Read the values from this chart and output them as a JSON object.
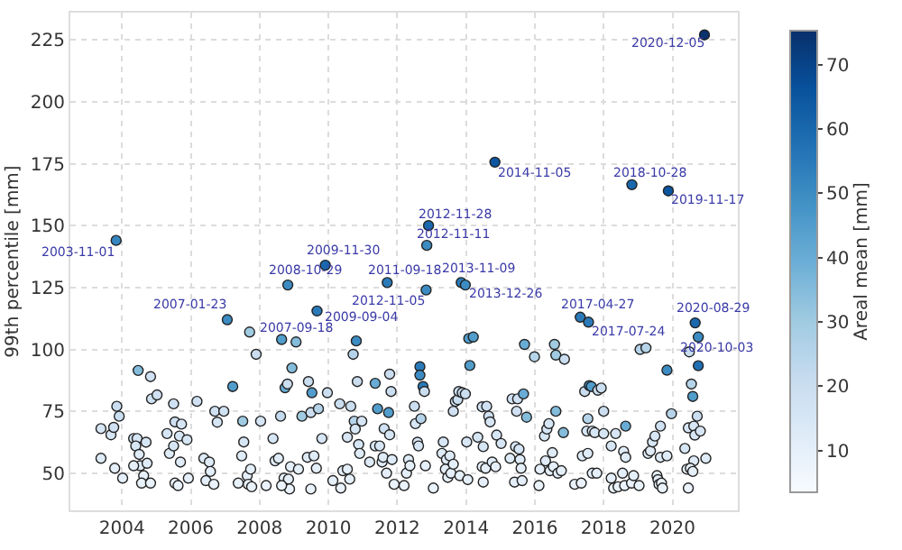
{
  "chart_data": {
    "type": "scatter",
    "ylabel": "99th percentile [mm]",
    "clabel": "Areal mean [mm]",
    "xlim": [
      2002.5,
      2021.9
    ],
    "xticks": [
      2004,
      2006,
      2008,
      2010,
      2012,
      2014,
      2016,
      2018,
      2020
    ],
    "ylim": [
      35,
      236
    ],
    "yticks": [
      50,
      75,
      100,
      125,
      150,
      175,
      200,
      225
    ],
    "clim": [
      3.5,
      75.3
    ],
    "cticks": [
      10,
      20,
      30,
      40,
      50,
      60,
      70
    ],
    "grid": true,
    "legend": false,
    "marker": "circle",
    "x": [
      2003.39,
      2003.39,
      2003.68,
      2003.76,
      2003.85,
      2003.92,
      2003.79,
      2004.02,
      2004.47,
      2004.34,
      2004.44,
      2004.4,
      2004.5,
      2004.53,
      2004.63,
      2004.7,
      2004.73,
      2004.57,
      2004.34,
      2004.83,
      2004.83,
      2004.86,
      2005.02,
      2005.31,
      2005.38,
      2005.5,
      2005.5,
      2005.54,
      2005.67,
      2005.73,
      2005.89,
      2005.7,
      2005.54,
      2005.63,
      2005.93,
      2006.18,
      2006.38,
      2006.54,
      2006.44,
      2006.57,
      2006.67,
      2006.7,
      2006.77,
      2006.96,
      2007.22,
      2007.38,
      2007.48,
      2007.51,
      2007.54,
      2007.64,
      2007.67,
      2007.77,
      2007.74,
      2007.9,
      2008.03,
      2008.19,
      2008.39,
      2008.45,
      2008.55,
      2008.61,
      2008.64,
      2008.74,
      2008.81,
      2008.94,
      2008.71,
      2008.84,
      2008.87,
      2008.64,
      2008.9,
      2009.06,
      2009.13,
      2009.23,
      2009.39,
      2009.42,
      2009.52,
      2009.49,
      2009.58,
      2009.65,
      2009.71,
      2009.81,
      2009.49,
      2009.97,
      2010.13,
      2010.36,
      2010.42,
      2010.55,
      2010.33,
      2010.55,
      2010.62,
      2010.65,
      2010.72,
      2010.75,
      2010.78,
      2010.81,
      2010.84,
      2010.88,
      2010.97,
      2010.91,
      2011.2,
      2011.36,
      2011.43,
      2011.36,
      2011.49,
      2011.56,
      2011.59,
      2011.62,
      2011.69,
      2011.78,
      2011.78,
      2011.82,
      2011.75,
      2011.85,
      2011.91,
      2012.2,
      2012.27,
      2012.33,
      2012.37,
      2012.5,
      2012.53,
      2012.59,
      2012.62,
      2012.66,
      2012.66,
      2012.75,
      2012.79,
      2012.69,
      2012.82,
      2013.05,
      2013.34,
      2013.3,
      2013.43,
      2013.4,
      2013.47,
      2013.56,
      2013.53,
      2013.63,
      2013.69,
      2013.63,
      2013.76,
      2013.82,
      2013.79,
      2013.89,
      2013.98,
      2014.02,
      2014.05,
      2014.08,
      2014.21,
      2014.11,
      2014.34,
      2014.47,
      2014.47,
      2014.5,
      2014.5,
      2014.57,
      2014.6,
      2014.66,
      2014.7,
      2014.76,
      2014.86,
      2014.89,
      2015.02,
      2015.28,
      2015.34,
      2015.41,
      2015.44,
      2015.5,
      2015.47,
      2015.54,
      2015.57,
      2015.6,
      2015.67,
      2015.7,
      2015.76,
      2015.63,
      2015.99,
      2016.12,
      2016.15,
      2016.28,
      2016.31,
      2016.35,
      2016.41,
      2016.44,
      2016.51,
      2016.54,
      2016.57,
      2016.61,
      2016.61,
      2016.67,
      2016.77,
      2016.83,
      2016.86,
      2017.16,
      2017.35,
      2017.38,
      2017.45,
      2017.54,
      2017.51,
      2017.54,
      2017.58,
      2017.64,
      2017.67,
      2017.67,
      2017.74,
      2017.8,
      2017.83,
      2017.93,
      2018.0,
      2018.0,
      2018.22,
      2018.22,
      2018.29,
      2018.35,
      2018.42,
      2018.55,
      2018.61,
      2018.58,
      2018.64,
      2018.64,
      2018.81,
      2018.87,
      2019.03,
      2019.06,
      2019.23,
      2019.29,
      2019.36,
      2019.42,
      2019.49,
      2019.55,
      2019.58,
      2019.61,
      2019.65,
      2019.68,
      2019.71,
      2019.65,
      2019.84,
      2019.84,
      2019.97,
      2020.36,
      2020.46,
      2020.46,
      2020.49,
      2020.55,
      2020.59,
      2020.62,
      2020.65,
      2020.62,
      2020.72,
      2020.81,
      2020.75,
      2020.97,
      2020.42,
      2020.52,
      2020.59,
      2003.83,
      2007.06,
      2007.71,
      2008.82,
      2009.67,
      2009.91,
      2011.71,
      2012.84,
      2012.86,
      2012.91,
      2013.86,
      2013.98,
      2014.84,
      2017.32,
      2017.56,
      2018.82,
      2019.88,
      2020.66,
      2020.75,
      2020.93
    ],
    "values": [
      68,
      56,
      65.5,
      68.5,
      77,
      73,
      52,
      48,
      91.5,
      64,
      64,
      61,
      57.6,
      53,
      49,
      62.5,
      54,
      46,
      53,
      46,
      89,
      80,
      81.6,
      66,
      58,
      61,
      78,
      70.7,
      65,
      69.8,
      63.5,
      54.5,
      46,
      45,
      48,
      79,
      56,
      54.5,
      47,
      50.7,
      45.5,
      75,
      70.6,
      75,
      85,
      46,
      57,
      71,
      62.6,
      49,
      45.5,
      44.5,
      51.6,
      98,
      71,
      45,
      64,
      55,
      56,
      73,
      104,
      84.5,
      86,
      92.5,
      48,
      47.6,
      43.6,
      45,
      52.6,
      103,
      51.6,
      73,
      56.4,
      87,
      82.5,
      74.5,
      57,
      52,
      76,
      64,
      43.6,
      82.5,
      47,
      44,
      51,
      51.6,
      78,
      64.5,
      47.6,
      77,
      98,
      71,
      67.8,
      103.4,
      87,
      61.6,
      71,
      58,
      54.5,
      86.3,
      76,
      61,
      61,
      54.5,
      56.4,
      68,
      50,
      65.5,
      90,
      83,
      74.5,
      55.5,
      45.5,
      45,
      50,
      55.5,
      53,
      77,
      70,
      62.5,
      61,
      93,
      89.6,
      85,
      83,
      72,
      53,
      44,
      62.6,
      58,
      55.5,
      51.6,
      48.3,
      50,
      57,
      53.6,
      79,
      75,
      79.7,
      49,
      83,
      82.5,
      82,
      62.6,
      47.4,
      104.4,
      105,
      93.5,
      64.5,
      76.8,
      52.6,
      60.7,
      46.4,
      52,
      77,
      73,
      70.7,
      54.5,
      52.6,
      65.4,
      62,
      56,
      80,
      46.4,
      60.7,
      80,
      75,
      59.7,
      55.5,
      52,
      82,
      102,
      72.6,
      47,
      97,
      45,
      51.6,
      65,
      55,
      67.8,
      70,
      51,
      58.3,
      52.6,
      102,
      97.7,
      75,
      50,
      51,
      66.4,
      96,
      45.5,
      46,
      57,
      83,
      72,
      67,
      58,
      85.4,
      85,
      67,
      50,
      66.4,
      50,
      83.5,
      84.4,
      75,
      66,
      61,
      48,
      44,
      66,
      44.5,
      50,
      45,
      58.8,
      69,
      56.4,
      46,
      49,
      45,
      100,
      100.6,
      58,
      59,
      62.6,
      65,
      49,
      47.4,
      45.5,
      56.4,
      46,
      44,
      69,
      57,
      91.6,
      74,
      60,
      44,
      68.3,
      99,
      86,
      81,
      69,
      65.4,
      55,
      73,
      67,
      105,
      56,
      51.6,
      52,
      50.7,
      144,
      112,
      107,
      126,
      115.5,
      134,
      127,
      124,
      142,
      150,
      127,
      126,
      175.6,
      113,
      111,
      166.5,
      164,
      110.7,
      93.4,
      227
    ],
    "cvalues": [
      15,
      12,
      15,
      18,
      20,
      20,
      10,
      10,
      35,
      18,
      15,
      15,
      12,
      12,
      10,
      15,
      12,
      8,
      10,
      8,
      18,
      18,
      18,
      15,
      12,
      15,
      18,
      18,
      15,
      15,
      15,
      12,
      8,
      8,
      10,
      18,
      12,
      12,
      10,
      10,
      8,
      18,
      15,
      18,
      45,
      8,
      12,
      30,
      15,
      10,
      8,
      8,
      10,
      20,
      15,
      8,
      15,
      12,
      12,
      22,
      45,
      40,
      20,
      35,
      10,
      10,
      8,
      8,
      10,
      35,
      10,
      30,
      12,
      20,
      45,
      20,
      12,
      10,
      25,
      15,
      8,
      20,
      10,
      8,
      10,
      10,
      20,
      15,
      10,
      20,
      25,
      25,
      15,
      50,
      20,
      15,
      15,
      12,
      12,
      40,
      45,
      15,
      15,
      12,
      12,
      18,
      10,
      15,
      20,
      20,
      45,
      12,
      8,
      8,
      10,
      12,
      10,
      20,
      15,
      15,
      15,
      55,
      50,
      55,
      20,
      25,
      10,
      8,
      15,
      12,
      12,
      10,
      10,
      10,
      12,
      10,
      20,
      18,
      20,
      10,
      20,
      20,
      20,
      15,
      10,
      45,
      45,
      45,
      15,
      18,
      10,
      15,
      10,
      10,
      18,
      18,
      15,
      12,
      10,
      15,
      15,
      12,
      18,
      10,
      15,
      18,
      18,
      15,
      12,
      10,
      40,
      40,
      35,
      10,
      25,
      8,
      10,
      15,
      12,
      15,
      15,
      10,
      12,
      10,
      30,
      30,
      35,
      10,
      10,
      35,
      20,
      8,
      8,
      12,
      20,
      25,
      15,
      12,
      50,
      45,
      15,
      10,
      15,
      10,
      20,
      20,
      20,
      15,
      15,
      10,
      8,
      15,
      8,
      10,
      8,
      12,
      40,
      12,
      8,
      10,
      8,
      25,
      25,
      12,
      12,
      15,
      15,
      10,
      10,
      8,
      12,
      8,
      8,
      18,
      12,
      50,
      25,
      15,
      8,
      15,
      20,
      25,
      45,
      15,
      15,
      12,
      20,
      15,
      50,
      12,
      10,
      10,
      10,
      52,
      50,
      30,
      50,
      55,
      60,
      55,
      50,
      50,
      60,
      55,
      50,
      65,
      55,
      55,
      60,
      65,
      60,
      58,
      75
    ],
    "annotations": [
      {
        "text": "2003-11-01",
        "x": 2003.83,
        "y": 144
      },
      {
        "text": "2007-01-23",
        "x": 2007.06,
        "y": 112
      },
      {
        "text": "2007-09-18",
        "x": 2007.71,
        "y": 107
      },
      {
        "text": "2008-10-29",
        "x": 2008.82,
        "y": 126
      },
      {
        "text": "2009-09-04",
        "x": 2009.67,
        "y": 115.5
      },
      {
        "text": "2009-11-30",
        "x": 2009.91,
        "y": 134
      },
      {
        "text": "2011-09-18",
        "x": 2011.71,
        "y": 127
      },
      {
        "text": "2012-11-05",
        "x": 2012.84,
        "y": 124
      },
      {
        "text": "2012-11-11",
        "x": 2012.86,
        "y": 142
      },
      {
        "text": "2012-11-28",
        "x": 2012.91,
        "y": 150
      },
      {
        "text": "2013-11-09",
        "x": 2013.86,
        "y": 127
      },
      {
        "text": "2013-12-26",
        "x": 2013.98,
        "y": 126
      },
      {
        "text": "2014-11-05",
        "x": 2014.84,
        "y": 175.6
      },
      {
        "text": "2017-04-27",
        "x": 2017.32,
        "y": 113
      },
      {
        "text": "2017-07-24",
        "x": 2017.56,
        "y": 111
      },
      {
        "text": "2018-10-28",
        "x": 2018.82,
        "y": 166.5
      },
      {
        "text": "2019-11-17",
        "x": 2019.88,
        "y": 164
      },
      {
        "text": "2020-08-29",
        "x": 2020.66,
        "y": 110.7
      },
      {
        "text": "2020-10-03",
        "x": 2020.75,
        "y": 93.4
      },
      {
        "text": "2020-12-05",
        "x": 2020.93,
        "y": 227
      }
    ]
  }
}
